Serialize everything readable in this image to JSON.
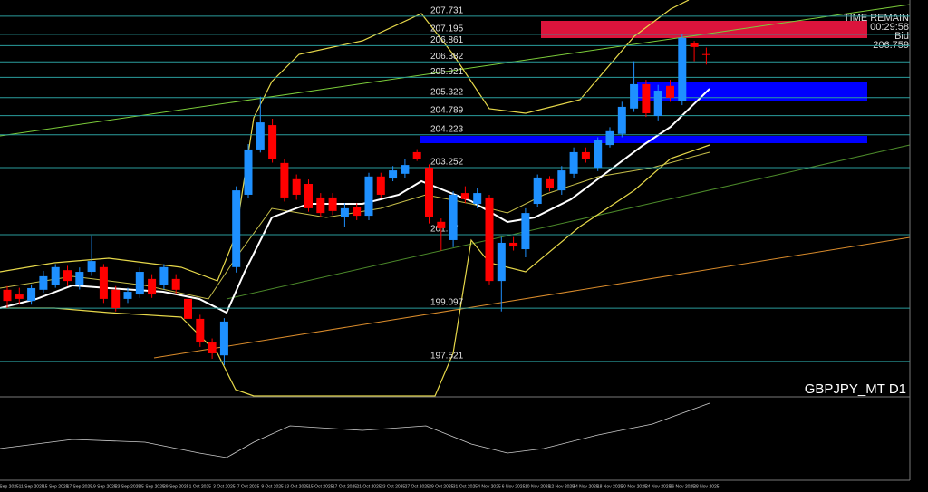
{
  "chart_data": {
    "type": "candlestick",
    "title": "GBPJPY_MT D1",
    "info": {
      "timer_label": "TIME REMAIN",
      "timer": "00:29:58",
      "bid_label": "Bid",
      "bid": "206.759"
    },
    "categories": [
      "9 Sep 2025",
      null,
      "11 Sep 2025",
      null,
      "15 Sep 2025",
      null,
      "17 Sep 2025",
      null,
      "19 Sep 2025",
      null,
      "23 Sep 2025",
      null,
      "25 Sep 2025",
      null,
      "29 Sep 2025",
      null,
      "1 Oct 2025",
      null,
      "3 Oct 2025",
      null,
      "7 Oct 2025",
      null,
      "9 Oct 2025",
      null,
      "13 Oct 2025",
      null,
      "15 Oct 2025",
      null,
      "17 Oct 2025",
      null,
      "21 Oct 2025",
      null,
      "23 Oct 2025",
      null,
      "27 Oct 2025",
      null,
      "29 Oct 2025",
      null,
      "31 Oct 2025",
      null,
      "4 Nov 2025",
      null,
      "6 Nov 2025",
      null,
      "10 Nov 2025",
      null,
      "12 Nov 2025",
      null,
      "14 Nov 2025",
      null,
      "18 Nov 2025",
      null,
      "20 Nov 2025",
      null,
      "24 Nov 2025",
      null,
      "26 Nov 2025",
      null,
      "28 Nov 2025"
    ],
    "ohlc": [
      [
        199.64,
        199.75,
        199.1,
        199.31
      ],
      [
        199.5,
        199.7,
        199.2,
        199.37
      ],
      [
        199.31,
        199.8,
        199.2,
        199.69
      ],
      [
        199.64,
        200.2,
        199.55,
        200.04
      ],
      [
        199.77,
        200.4,
        199.7,
        200.31
      ],
      [
        200.22,
        200.35,
        199.75,
        199.9
      ],
      [
        199.77,
        200.3,
        199.65,
        200.17
      ],
      [
        200.17,
        201.25,
        200.05,
        200.49
      ],
      [
        200.31,
        200.4,
        199.25,
        199.37
      ],
      [
        199.64,
        199.75,
        199.0,
        199.1
      ],
      [
        199.37,
        199.7,
        199.25,
        199.58
      ],
      [
        199.5,
        200.3,
        199.4,
        200.17
      ],
      [
        199.96,
        200.1,
        199.4,
        199.5
      ],
      [
        199.77,
        200.4,
        199.65,
        200.31
      ],
      [
        199.96,
        200.1,
        199.5,
        199.64
      ],
      [
        199.37,
        199.45,
        198.65,
        198.78
      ],
      [
        198.78,
        198.9,
        197.95,
        198.08
      ],
      [
        198.08,
        198.2,
        197.6,
        197.76
      ],
      [
        197.7,
        198.8,
        197.41,
        198.7
      ],
      [
        200.31,
        202.7,
        200.15,
        202.58
      ],
      [
        202.45,
        203.95,
        202.35,
        203.79
      ],
      [
        203.79,
        205.35,
        203.7,
        204.59
      ],
      [
        204.51,
        204.7,
        203.4,
        203.52
      ],
      [
        203.39,
        203.5,
        202.25,
        202.37
      ],
      [
        202.91,
        203.05,
        202.3,
        202.45
      ],
      [
        202.77,
        202.9,
        201.95,
        202.05
      ],
      [
        202.37,
        202.5,
        201.8,
        201.91
      ],
      [
        202.37,
        202.5,
        201.85,
        201.97
      ],
      [
        201.78,
        202.2,
        201.5,
        202.05
      ],
      [
        202.1,
        202.2,
        201.7,
        201.83
      ],
      [
        201.83,
        203.1,
        201.7,
        202.99
      ],
      [
        202.99,
        203.1,
        202.35,
        202.45
      ],
      [
        202.93,
        203.3,
        202.85,
        203.17
      ],
      [
        203.07,
        203.5,
        202.95,
        203.33
      ],
      [
        203.71,
        203.8,
        203.45,
        203.52
      ],
      [
        203.25,
        203.35,
        201.6,
        201.78
      ],
      [
        201.65,
        201.75,
        200.8,
        201.46
      ],
      [
        201.11,
        202.55,
        200.9,
        202.45
      ],
      [
        202.5,
        202.7,
        202.2,
        202.32
      ],
      [
        202.18,
        202.65,
        202.05,
        202.5
      ],
      [
        202.37,
        202.45,
        199.8,
        199.9
      ],
      [
        199.9,
        201.2,
        199.0,
        201.03
      ],
      [
        201.03,
        201.2,
        200.8,
        200.92
      ],
      [
        200.84,
        202.05,
        200.6,
        201.91
      ],
      [
        202.18,
        203.05,
        202.1,
        202.96
      ],
      [
        202.91,
        203.0,
        202.55,
        202.64
      ],
      [
        202.58,
        203.3,
        202.45,
        203.17
      ],
      [
        203.07,
        203.85,
        202.95,
        203.71
      ],
      [
        203.71,
        203.85,
        203.4,
        203.52
      ],
      [
        203.25,
        204.15,
        203.15,
        204.06
      ],
      [
        203.92,
        204.45,
        203.85,
        204.33
      ],
      [
        204.25,
        205.2,
        204.15,
        205.05
      ],
      [
        205.0,
        206.4,
        204.9,
        205.72
      ],
      [
        205.72,
        205.85,
        204.75,
        204.86
      ],
      [
        204.78,
        205.7,
        204.65,
        205.53
      ],
      [
        205.67,
        205.85,
        205.2,
        205.32
      ],
      [
        205.21,
        207.2,
        205.1,
        207.09
      ],
      [
        206.95,
        207.0,
        206.4,
        206.82
      ],
      [
        206.61,
        206.8,
        206.3,
        206.6
      ]
    ],
    "levels": [
      207.731,
      207.195,
      206.861,
      206.382,
      205.921,
      205.322,
      204.789,
      204.223,
      203.252,
      201.27,
      199.097,
      197.521
    ],
    "ylim": [
      196.5,
      208.21
    ],
    "up_color": "#1e90ff",
    "down_color": "#ff0000",
    "level_color": "#2a9d9d"
  }
}
